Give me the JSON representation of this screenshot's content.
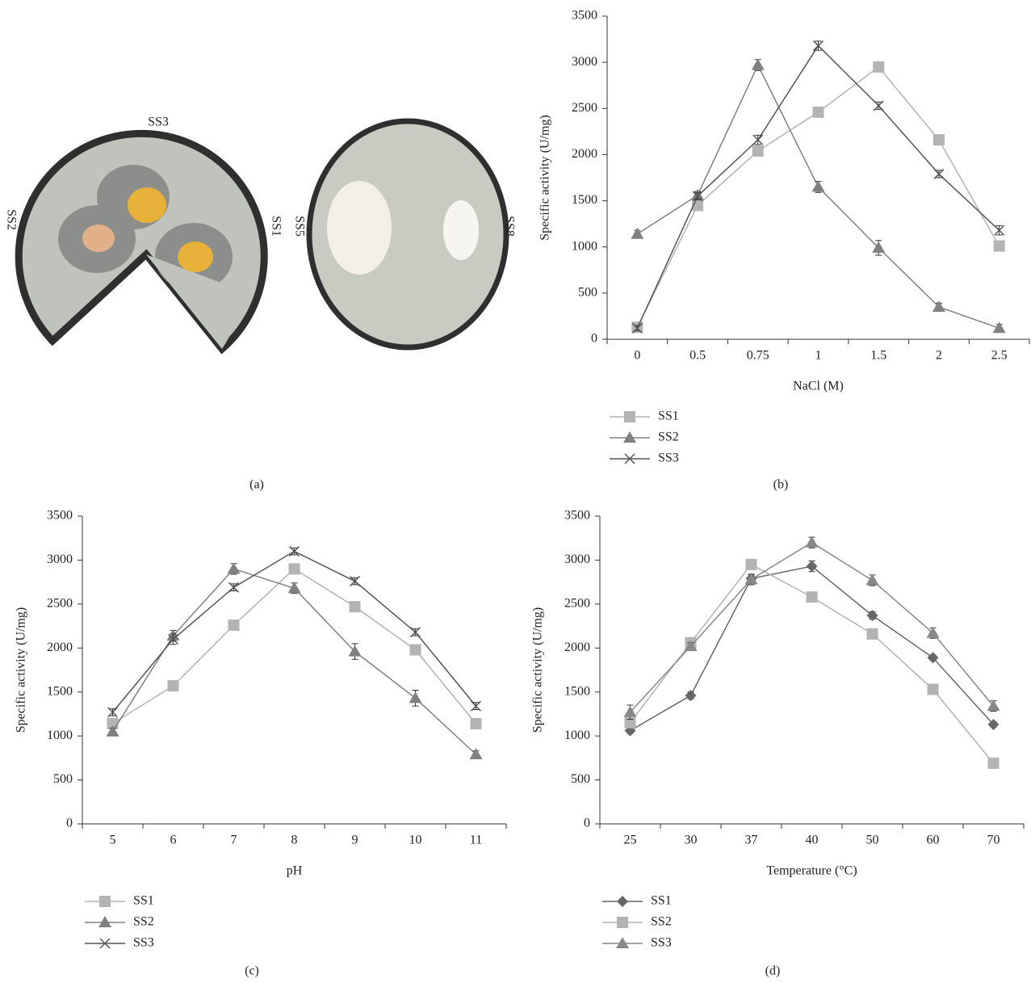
{
  "panel_a": {
    "caption": "(a)",
    "labels": [
      "SS3",
      "SS2",
      "SS1",
      "SS5",
      "SS8"
    ]
  },
  "chart_data": [
    {
      "type": "line",
      "caption": "(b)",
      "x_label": "NaCl (M)",
      "y_label": "Specific activity (U/mg)",
      "categories": [
        "0",
        "0.5",
        "0.75",
        "1",
        "1.5",
        "2",
        "2.5"
      ],
      "ylim": [
        0,
        3500
      ],
      "yticks": [
        0,
        500,
        1000,
        1500,
        2000,
        2500,
        3000,
        3500
      ],
      "legend": "bottom-left",
      "series": [
        {
          "name": "SS1",
          "color": "#b3b3b3",
          "marker": "square",
          "values": [
            130,
            1450,
            2040,
            2460,
            2950,
            2160,
            1010
          ],
          "errors": [
            30,
            30,
            30,
            40,
            50,
            50,
            30
          ]
        },
        {
          "name": "SS2",
          "color": "#808080",
          "marker": "triangle",
          "values": [
            1140,
            1560,
            2970,
            1650,
            990,
            350,
            120
          ],
          "errors": [
            40,
            40,
            60,
            60,
            80,
            40,
            40
          ]
        },
        {
          "name": "SS3",
          "color": "#555555",
          "marker": "cross",
          "values": [
            120,
            1550,
            2160,
            3180,
            2530,
            1790,
            1180
          ],
          "errors": [
            30,
            40,
            50,
            50,
            40,
            40,
            50
          ]
        }
      ]
    },
    {
      "type": "line",
      "caption": "(c)",
      "x_label": "pH",
      "y_label": "Specific activity (U/mg)",
      "categories": [
        "5",
        "6",
        "7",
        "8",
        "9",
        "10",
        "11"
      ],
      "ylim": [
        0,
        3500
      ],
      "yticks": [
        0,
        500,
        1000,
        1500,
        2000,
        2500,
        3000,
        3500
      ],
      "legend": "bottom-left",
      "series": [
        {
          "name": "SS1",
          "color": "#b3b3b3",
          "marker": "square",
          "values": [
            1140,
            1570,
            2260,
            2900,
            2470,
            1980,
            1140
          ],
          "errors": [
            40,
            30,
            30,
            50,
            50,
            50,
            30
          ]
        },
        {
          "name": "SS2",
          "color": "#808080",
          "marker": "triangle",
          "values": [
            1050,
            2140,
            2900,
            2680,
            1960,
            1430,
            790
          ],
          "errors": [
            40,
            60,
            60,
            60,
            90,
            90,
            40
          ]
        },
        {
          "name": "SS3",
          "color": "#555555",
          "marker": "cross",
          "values": [
            1270,
            2100,
            2690,
            3100,
            2760,
            2180,
            1340
          ],
          "errors": [
            40,
            60,
            40,
            40,
            40,
            40,
            40
          ]
        }
      ]
    },
    {
      "type": "line",
      "caption": "(d)",
      "x_label": "Temperature (°C)",
      "y_label": "Specific activity (U/mg)",
      "categories": [
        "25",
        "30",
        "37",
        "40",
        "50",
        "60",
        "70"
      ],
      "ylim": [
        0,
        3500
      ],
      "yticks": [
        0,
        500,
        1000,
        1500,
        2000,
        2500,
        3000,
        3500
      ],
      "legend": "bottom-left",
      "series": [
        {
          "name": "SS1",
          "color": "#666666",
          "marker": "diamond",
          "values": [
            1060,
            1460,
            2790,
            2930,
            2370,
            1890,
            1130
          ],
          "errors": [
            30,
            40,
            40,
            60,
            40,
            30,
            30
          ]
        },
        {
          "name": "SS2",
          "color": "#b3b3b3",
          "marker": "square",
          "values": [
            1150,
            2060,
            2950,
            2580,
            2160,
            1530,
            690
          ],
          "errors": [
            30,
            30,
            30,
            30,
            30,
            30,
            30
          ]
        },
        {
          "name": "SS3",
          "color": "#888888",
          "marker": "triangle",
          "values": [
            1270,
            2020,
            2780,
            3200,
            2770,
            2170,
            1340
          ],
          "errors": [
            80,
            40,
            60,
            60,
            60,
            60,
            60
          ]
        }
      ]
    }
  ]
}
